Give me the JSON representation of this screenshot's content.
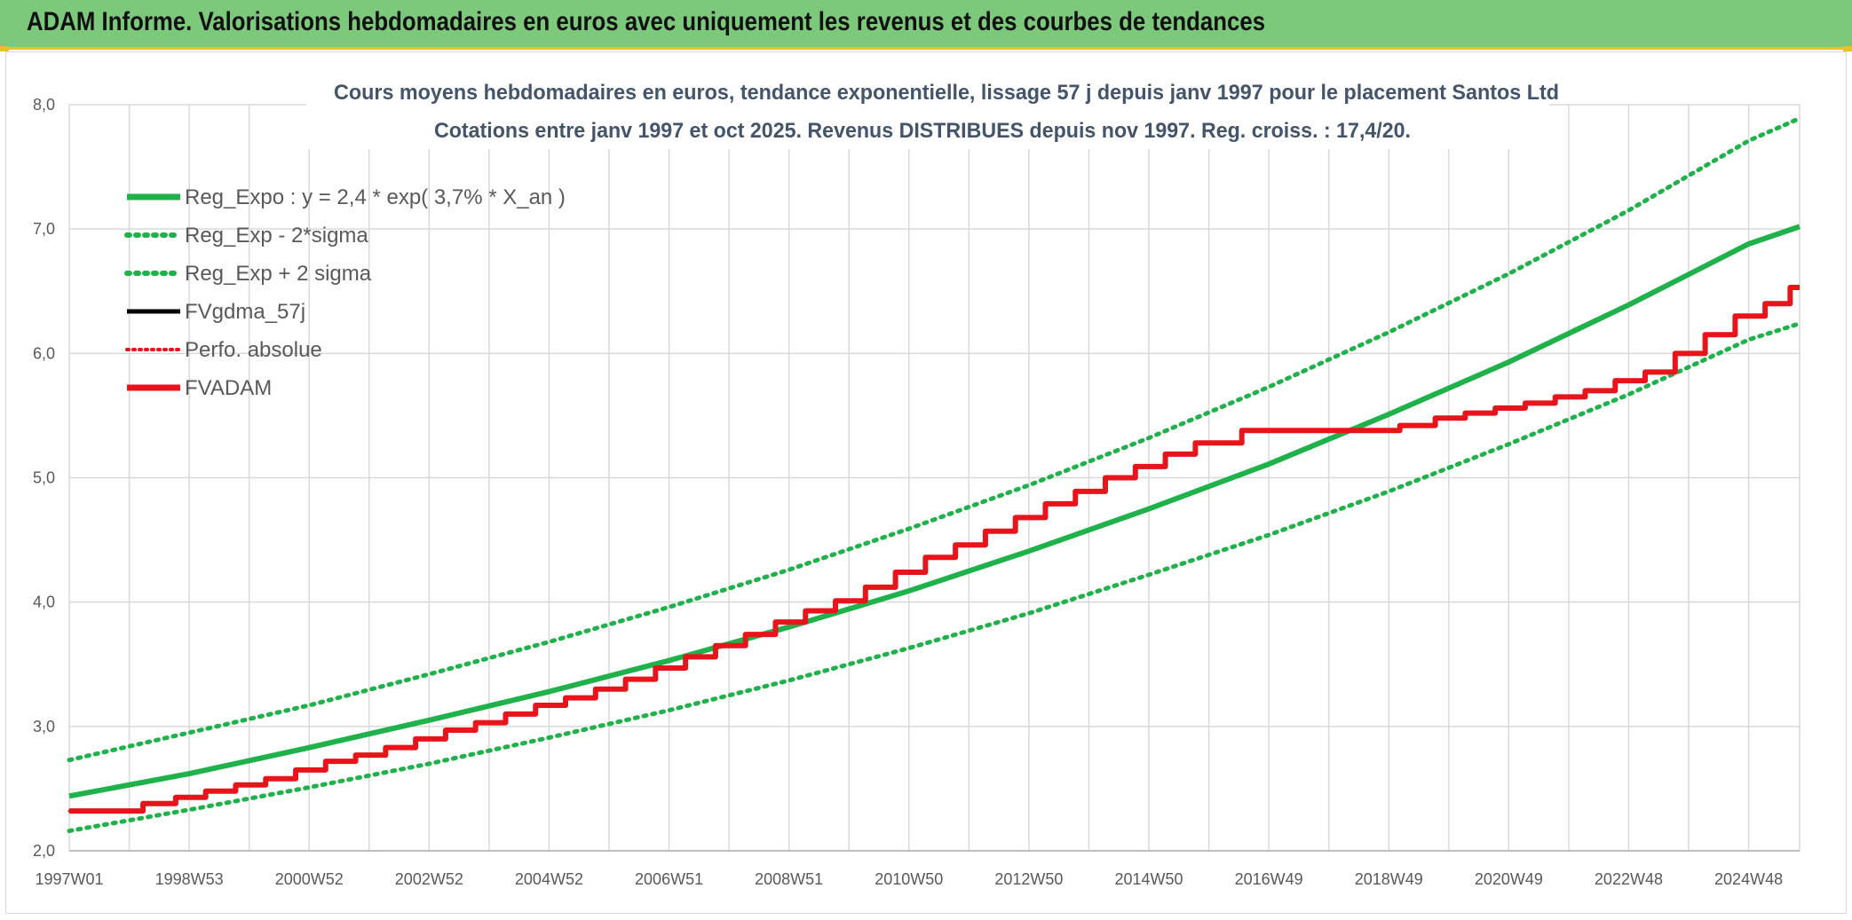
{
  "banner": {
    "title": "ADAM Informe. Valorisations hebdomadaires en euros avec uniquement les revenus et des courbes de tendances",
    "color": "#7dc97b"
  },
  "chart_data": {
    "type": "line",
    "title": "Cours moyens hebdomadaires en euros, tendance exponentielle, lissage 57 j depuis janv 1997 pour le placement Santos Ltd",
    "subtitle": "Cotations entre janv 1997 et oct 2025. Revenus DISTRIBUES depuis nov 1997. Reg. croiss. : 17,4/20.",
    "xlabel": "",
    "ylabel": "",
    "ylim": [
      2.0,
      8.0
    ],
    "y_ticks": [
      "2,0",
      "3,0",
      "4,0",
      "5,0",
      "6,0",
      "7,0",
      "8,0"
    ],
    "x_range": [
      1997.0,
      2025.85
    ],
    "x_ticks": [
      {
        "label": "1997W01",
        "x": 1997.0
      },
      {
        "label": "1998W53",
        "x": 1999.0
      },
      {
        "label": "2000W52",
        "x": 2001.0
      },
      {
        "label": "2002W52",
        "x": 2003.0
      },
      {
        "label": "2004W52",
        "x": 2005.0
      },
      {
        "label": "2006W51",
        "x": 2007.0
      },
      {
        "label": "2008W51",
        "x": 2009.0
      },
      {
        "label": "2010W50",
        "x": 2011.0
      },
      {
        "label": "2012W50",
        "x": 2013.0
      },
      {
        "label": "2014W50",
        "x": 2015.0
      },
      {
        "label": "2016W49",
        "x": 2017.0
      },
      {
        "label": "2018W49",
        "x": 2019.0
      },
      {
        "label": "2020W49",
        "x": 2021.0
      },
      {
        "label": "2022W48",
        "x": 2023.0
      },
      {
        "label": "2024W48",
        "x": 2025.0
      }
    ],
    "grid": true,
    "legend_position": "top-left",
    "series": [
      {
        "name": "Reg_Expo : y = 2,4 * exp( 3,7% *  X_an )",
        "style": "solid-thick",
        "color": "#1fb24a",
        "x": [
          1997,
          1999,
          2001,
          2003,
          2005,
          2007,
          2009,
          2011,
          2013,
          2015,
          2017,
          2019,
          2021,
          2023,
          2025,
          2025.85
        ],
        "values": [
          2.44,
          2.62,
          2.83,
          3.05,
          3.28,
          3.53,
          3.8,
          4.09,
          4.41,
          4.75,
          5.11,
          5.51,
          5.93,
          6.39,
          6.88,
          7.02
        ]
      },
      {
        "name": "Reg_Exp - 2*sigma",
        "style": "dotted",
        "color": "#1fb24a",
        "x": [
          1997,
          1999,
          2001,
          2003,
          2005,
          2007,
          2009,
          2011,
          2013,
          2015,
          2017,
          2019,
          2021,
          2023,
          2025,
          2025.85
        ],
        "values": [
          2.16,
          2.33,
          2.51,
          2.7,
          2.91,
          3.13,
          3.37,
          3.63,
          3.91,
          4.22,
          4.54,
          4.89,
          5.27,
          5.67,
          6.11,
          6.24
        ]
      },
      {
        "name": "Reg_Exp + 2 sigma",
        "style": "dotted",
        "color": "#1fb24a",
        "x": [
          1997,
          1999,
          2001,
          2003,
          2005,
          2007,
          2009,
          2011,
          2013,
          2015,
          2017,
          2019,
          2021,
          2023,
          2025,
          2025.85
        ],
        "values": [
          2.73,
          2.95,
          3.17,
          3.42,
          3.68,
          3.96,
          4.26,
          4.59,
          4.94,
          5.32,
          5.73,
          6.17,
          6.64,
          7.15,
          7.71,
          7.89
        ]
      },
      {
        "name": "FVgdma_57j",
        "style": "solid",
        "color": "#000000",
        "x": [
          1997,
          1997.9,
          1998.5,
          1999.0,
          1999.5,
          2000.0,
          2000.5,
          2001.0,
          2001.5,
          2002.0,
          2002.5,
          2003.0,
          2003.5,
          2004.0,
          2004.5,
          2005.0,
          2005.5,
          2006.0,
          2006.5,
          2007.0,
          2007.5,
          2008.0,
          2008.5,
          2009.0,
          2009.5,
          2010.0,
          2010.5,
          2011.0,
          2011.5,
          2012.0,
          2012.5,
          2013.0,
          2013.5,
          2014.0,
          2014.5,
          2015.0,
          2015.5,
          2016.0,
          2017.0,
          2018.0,
          2018.8,
          2019.5,
          2020.0,
          2020.5,
          2021.0,
          2021.5,
          2022.0,
          2022.5,
          2023.0,
          2023.5,
          2024.0,
          2024.5,
          2025.0,
          2025.5,
          2025.85
        ],
        "values": [
          2.32,
          2.32,
          2.38,
          2.43,
          2.48,
          2.53,
          2.58,
          2.65,
          2.72,
          2.77,
          2.83,
          2.9,
          2.97,
          3.03,
          3.1,
          3.17,
          3.23,
          3.3,
          3.38,
          3.47,
          3.56,
          3.65,
          3.74,
          3.84,
          3.93,
          4.01,
          4.12,
          4.24,
          4.36,
          4.46,
          4.57,
          4.68,
          4.79,
          4.89,
          5.0,
          5.09,
          5.19,
          5.28,
          5.38,
          5.38,
          5.38,
          5.42,
          5.48,
          5.52,
          5.56,
          5.6,
          5.65,
          5.7,
          5.78,
          5.85,
          6.0,
          6.15,
          6.3,
          6.4,
          6.53
        ]
      },
      {
        "name": "Perfo. absolue",
        "style": "dotted",
        "color": "#e8141b",
        "x": [
          1997,
          1997.9,
          1998.5,
          1999.0,
          1999.5,
          2000.0,
          2000.5,
          2001.0,
          2001.5,
          2002.0,
          2002.5,
          2003.0,
          2003.5,
          2004.0,
          2004.5,
          2005.0,
          2005.5,
          2006.0,
          2006.5,
          2007.0,
          2007.5,
          2008.0,
          2008.5,
          2009.0,
          2009.5,
          2010.0,
          2010.5,
          2011.0,
          2011.5,
          2012.0,
          2012.5,
          2013.0,
          2013.5,
          2014.0,
          2014.5,
          2015.0,
          2015.5,
          2016.0,
          2017.0,
          2018.0,
          2018.8,
          2019.5,
          2020.0,
          2020.5,
          2021.0,
          2021.5,
          2022.0,
          2022.5,
          2023.0,
          2023.5,
          2024.0,
          2024.5,
          2025.0,
          2025.5,
          2025.85
        ],
        "values": [
          2.32,
          2.32,
          2.38,
          2.43,
          2.48,
          2.53,
          2.58,
          2.65,
          2.72,
          2.77,
          2.83,
          2.9,
          2.97,
          3.03,
          3.1,
          3.17,
          3.23,
          3.3,
          3.38,
          3.47,
          3.56,
          3.65,
          3.74,
          3.84,
          3.93,
          4.01,
          4.12,
          4.24,
          4.36,
          4.46,
          4.57,
          4.68,
          4.79,
          4.89,
          5.0,
          5.09,
          5.19,
          5.28,
          5.38,
          5.38,
          5.38,
          5.42,
          5.48,
          5.52,
          5.56,
          5.6,
          5.65,
          5.7,
          5.78,
          5.85,
          6.0,
          6.15,
          6.3,
          6.4,
          6.53
        ]
      },
      {
        "name": "FVADAM",
        "style": "step-thick",
        "color": "#e8141b",
        "x": [
          1997,
          1997.9,
          1998.5,
          1999.0,
          1999.5,
          2000.0,
          2000.5,
          2001.0,
          2001.5,
          2002.0,
          2002.5,
          2003.0,
          2003.5,
          2004.0,
          2004.5,
          2005.0,
          2005.5,
          2006.0,
          2006.5,
          2007.0,
          2007.5,
          2008.0,
          2008.5,
          2009.0,
          2009.5,
          2010.0,
          2010.5,
          2011.0,
          2011.5,
          2012.0,
          2012.5,
          2013.0,
          2013.5,
          2014.0,
          2014.5,
          2015.0,
          2015.5,
          2016.0,
          2017.0,
          2018.0,
          2018.8,
          2019.5,
          2020.0,
          2020.5,
          2021.0,
          2021.5,
          2022.0,
          2022.5,
          2023.0,
          2023.5,
          2024.0,
          2024.5,
          2025.0,
          2025.5,
          2025.85
        ],
        "values": [
          2.32,
          2.32,
          2.38,
          2.43,
          2.48,
          2.53,
          2.58,
          2.65,
          2.72,
          2.77,
          2.83,
          2.9,
          2.97,
          3.03,
          3.1,
          3.17,
          3.23,
          3.3,
          3.38,
          3.47,
          3.56,
          3.65,
          3.74,
          3.84,
          3.93,
          4.01,
          4.12,
          4.24,
          4.36,
          4.46,
          4.57,
          4.68,
          4.79,
          4.89,
          5.0,
          5.09,
          5.19,
          5.28,
          5.38,
          5.38,
          5.38,
          5.42,
          5.48,
          5.52,
          5.56,
          5.6,
          5.65,
          5.7,
          5.78,
          5.85,
          6.0,
          6.15,
          6.3,
          6.4,
          6.53
        ]
      }
    ]
  }
}
